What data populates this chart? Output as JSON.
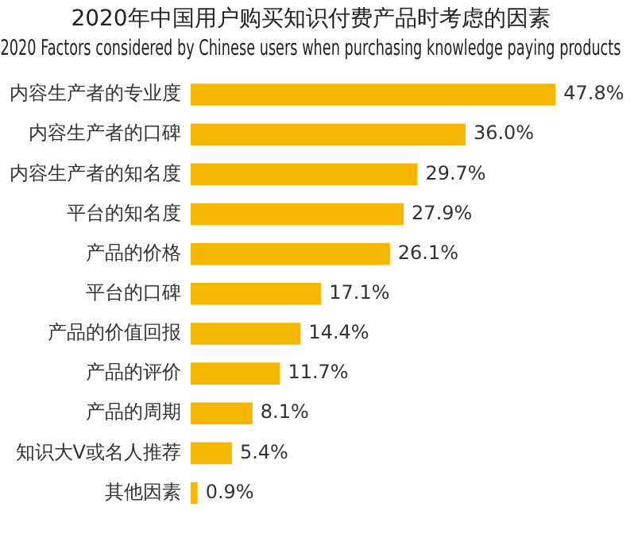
{
  "chart_data": {
    "type": "bar",
    "orientation": "horizontal",
    "title": "2020年中国用户购买知识付费产品时考虑的因素",
    "subtitle": "2020 Factors considered by Chinese users when purchasing knowledge paying products",
    "categories": [
      "内容生产者的专业度",
      "内容生产者的口碑",
      "内容生产者的知名度",
      "平台的知名度",
      "产品的价格",
      "平台的口碑",
      "产品的价值回报",
      "产品的评价",
      "产品的周期",
      "知识大V或名人推荐",
      "其他因素"
    ],
    "values": [
      47.8,
      36.0,
      29.7,
      27.9,
      26.1,
      17.1,
      14.4,
      11.7,
      8.1,
      5.4,
      0.9
    ],
    "value_labels": [
      "47.8%",
      "36.0%",
      "29.7%",
      "27.9%",
      "26.1%",
      "17.1%",
      "14.4%",
      "11.7%",
      "8.1%",
      "5.4%",
      "0.9%"
    ],
    "color": "#f5b700",
    "tick_labels": "y",
    "grid": false,
    "legend": false
  }
}
